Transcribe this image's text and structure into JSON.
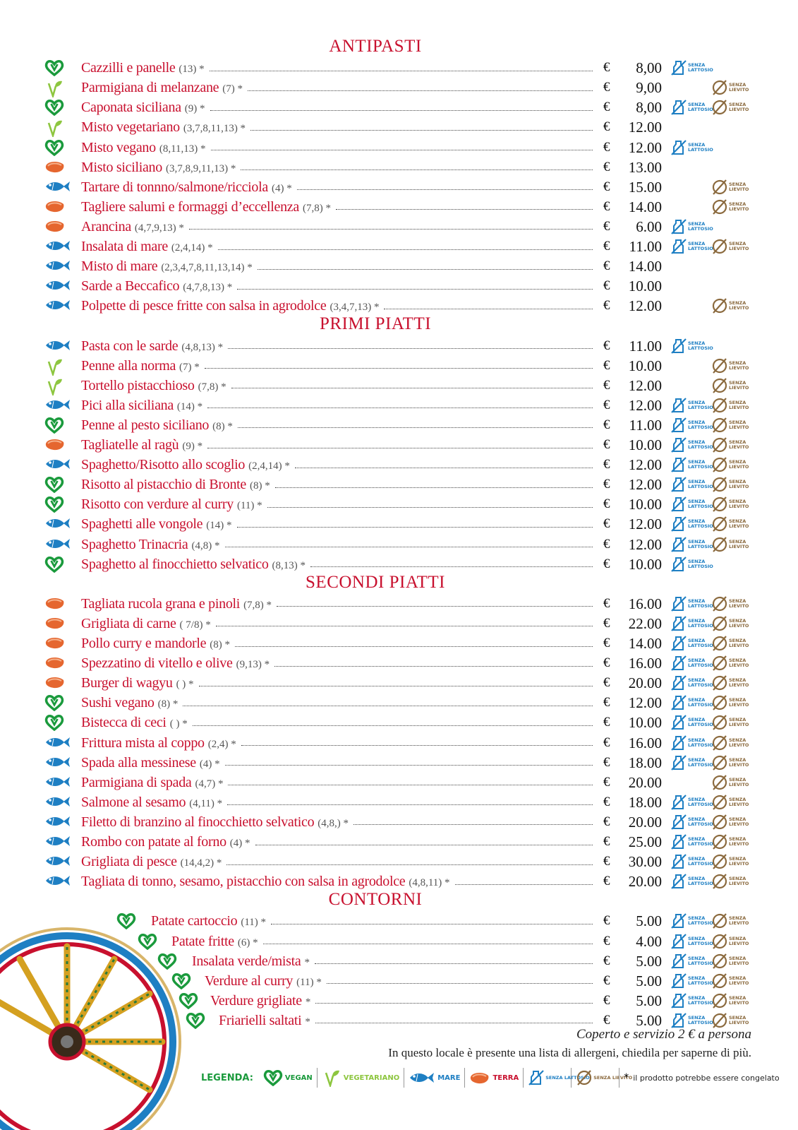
{
  "currency": "€",
  "sections": [
    {
      "title": "ANTIPASTI",
      "items": [
        {
          "icon": "vegan",
          "name": "Cazzilli e panelle",
          "note": "(13) *",
          "price": "8,00",
          "senza_lattosio": true,
          "senza_lievito": false
        },
        {
          "icon": "vegetarian",
          "name": "Parmigiana di melanzane",
          "note": "(7) *",
          "price": "9,00",
          "senza_lattosio": false,
          "senza_lievito": true
        },
        {
          "icon": "vegan",
          "name": "Caponata siciliana",
          "note": "(9) *",
          "price": "8,00",
          "senza_lattosio": true,
          "senza_lievito": true
        },
        {
          "icon": "vegetarian",
          "name": "Misto vegetariano",
          "note": "(3,7,8,11,13) *",
          "price": "12.00",
          "senza_lattosio": false,
          "senza_lievito": false
        },
        {
          "icon": "vegan",
          "name": "Misto vegano",
          "note": "(8,11,13) *",
          "price": "12.00",
          "senza_lattosio": true,
          "senza_lievito": false
        },
        {
          "icon": "terra",
          "name": "Misto siciliano",
          "note": "(3,7,8,9,11,13) *",
          "price": "13.00",
          "senza_lattosio": false,
          "senza_lievito": false
        },
        {
          "icon": "mare",
          "name": "Tartare di tonnno/salmone/ricciola",
          "note": "(4) *",
          "price": "15.00",
          "senza_lattosio": false,
          "senza_lievito": true
        },
        {
          "icon": "terra",
          "name": "Tagliere salumi e formaggi d’eccellenza",
          "note": "(7,8) *",
          "price": "14.00",
          "senza_lattosio": false,
          "senza_lievito": true
        },
        {
          "icon": "terra",
          "name": "Arancina",
          "note": "(4,7,9,13) *",
          "price": "6.00",
          "senza_lattosio": true,
          "senza_lievito": false
        },
        {
          "icon": "mare",
          "name": "Insalata di mare",
          "note": "(2,4,14) *",
          "price": "11.00",
          "senza_lattosio": true,
          "senza_lievito": true
        },
        {
          "icon": "mare",
          "name": "Misto di mare",
          "note": "(2,3,4,7,8,11,13,14) *",
          "price": "14.00",
          "senza_lattosio": false,
          "senza_lievito": false
        },
        {
          "icon": "mare",
          "name": "Sarde a Beccafico",
          "note": "(4,7,8,13) *",
          "price": "10.00",
          "senza_lattosio": false,
          "senza_lievito": false
        },
        {
          "icon": "mare",
          "name": "Polpette di pesce fritte con salsa in agrodolce",
          "note": "(3,4,7,13) *",
          "price": "12.00",
          "senza_lattosio": false,
          "senza_lievito": true
        }
      ]
    },
    {
      "title": "PRIMI PIATTI",
      "items": [
        {
          "icon": "mare",
          "name": "Pasta con le sarde",
          "note": "(4,8,13) *",
          "price": "11.00",
          "senza_lattosio": true,
          "senza_lievito": false
        },
        {
          "icon": "vegetarian",
          "name": "Penne alla norma",
          "note": "(7) *",
          "price": "10.00",
          "senza_lattosio": false,
          "senza_lievito": true
        },
        {
          "icon": "vegetarian",
          "name": "Tortello pistacchioso",
          "note": "(7,8) *",
          "price": "12.00",
          "senza_lattosio": false,
          "senza_lievito": true
        },
        {
          "icon": "mare",
          "name": "Pici alla siciliana",
          "note": "(14) *",
          "price": "12.00",
          "senza_lattosio": true,
          "senza_lievito": true
        },
        {
          "icon": "vegan",
          "name": "Penne al pesto siciliano",
          "note": "(8) *",
          "price": "11.00",
          "senza_lattosio": true,
          "senza_lievito": true
        },
        {
          "icon": "terra",
          "name": "Tagliatelle al ragù",
          "note": "(9) *",
          "price": "10.00",
          "senza_lattosio": true,
          "senza_lievito": true
        },
        {
          "icon": "mare",
          "name": "Spaghetto/Risotto allo scoglio",
          "note": "(2,4,14) *",
          "price": "12.00",
          "senza_lattosio": true,
          "senza_lievito": true
        },
        {
          "icon": "vegan",
          "name": "Risotto al pistacchio di Bronte",
          "note": "(8) *",
          "price": "12.00",
          "senza_lattosio": true,
          "senza_lievito": true
        },
        {
          "icon": "vegan",
          "name": "Risotto con verdure al curry",
          "note": "(11) *",
          "price": "10.00",
          "senza_lattosio": true,
          "senza_lievito": true
        },
        {
          "icon": "mare",
          "name": "Spaghetti alle vongole",
          "note": "(14) *",
          "price": "12.00",
          "senza_lattosio": true,
          "senza_lievito": true
        },
        {
          "icon": "mare",
          "name": "Spaghetto Trinacria",
          "note": "(4,8) *",
          "price": "12.00",
          "senza_lattosio": true,
          "senza_lievito": true
        },
        {
          "icon": "vegan",
          "name": "Spaghetto al finocchietto selvatico",
          "note": "(8,13) *",
          "price": "10.00",
          "senza_lattosio": true,
          "senza_lievito": false
        }
      ]
    },
    {
      "title": "SECONDI PIATTI",
      "items": [
        {
          "icon": "terra",
          "name": "Tagliata rucola grana e pinoli",
          "note": "(7,8) *",
          "price": "16.00",
          "senza_lattosio": true,
          "senza_lievito": true
        },
        {
          "icon": "terra",
          "name": "Grigliata di carne",
          "note": "( 7/8) *",
          "price": "22.00",
          "senza_lattosio": true,
          "senza_lievito": true
        },
        {
          "icon": "terra",
          "name": "Pollo curry e mandorle",
          "note": "(8) *",
          "price": "14.00",
          "senza_lattosio": true,
          "senza_lievito": true
        },
        {
          "icon": "terra",
          "name": "Spezzatino di vitello e olive",
          "note": "(9,13) *",
          "price": "16.00",
          "senza_lattosio": true,
          "senza_lievito": true
        },
        {
          "icon": "terra",
          "name": "Burger di wagyu",
          "note": "( ) *",
          "price": "20.00",
          "senza_lattosio": true,
          "senza_lievito": true
        },
        {
          "icon": "vegan",
          "name": "Sushi vegano",
          "note": "(8) *",
          "price": "12.00",
          "senza_lattosio": true,
          "senza_lievito": true
        },
        {
          "icon": "vegan",
          "name": "Bistecca di ceci",
          "note": "( ) *",
          "price": "10.00",
          "senza_lattosio": true,
          "senza_lievito": true
        },
        {
          "icon": "mare",
          "name": "Frittura mista al coppo",
          "note": "(2,4) *",
          "price": "16.00",
          "senza_lattosio": true,
          "senza_lievito": true
        },
        {
          "icon": "mare",
          "name": "Spada alla messinese",
          "note": "(4) *",
          "price": "18.00",
          "senza_lattosio": true,
          "senza_lievito": true
        },
        {
          "icon": "mare",
          "name": "Parmigiana di spada",
          "note": "(4,7) *",
          "price": "20.00",
          "senza_lattosio": false,
          "senza_lievito": true
        },
        {
          "icon": "mare",
          "name": "Salmone al sesamo",
          "note": "(4,11) *",
          "price": "18.00",
          "senza_lattosio": true,
          "senza_lievito": true
        },
        {
          "icon": "mare",
          "name": "Filetto di branzino al finocchietto selvatico",
          "note": "(4,8,) *",
          "price": "20.00",
          "senza_lattosio": true,
          "senza_lievito": true
        },
        {
          "icon": "mare",
          "name": "Rombo con patate al forno",
          "note": "(4) *",
          "price": "25.00",
          "senza_lattosio": true,
          "senza_lievito": true
        },
        {
          "icon": "mare",
          "name": "Grigliata di pesce",
          "note": "(14,4,2) *",
          "price": "30.00",
          "senza_lattosio": true,
          "senza_lievito": true
        },
        {
          "icon": "mare",
          "name": "Tagliata di tonno, sesamo, pistacchio con salsa in agrodolce",
          "note": "(4,8,11) *",
          "price": "20.00",
          "senza_lattosio": true,
          "senza_lievito": true
        }
      ]
    },
    {
      "title": "CONTORNI",
      "items": [
        {
          "icon": "vegan",
          "name": "Patate cartoccio",
          "note": "(11) *",
          "price": "5.00",
          "senza_lattosio": true,
          "senza_lievito": true
        },
        {
          "icon": "vegan",
          "name": "Patate fritte",
          "note": "(6) *",
          "price": "4.00",
          "senza_lattosio": true,
          "senza_lievito": true
        },
        {
          "icon": "vegan",
          "name": "Insalata verde/mista",
          "note": "*",
          "price": "5.00",
          "senza_lattosio": true,
          "senza_lievito": true
        },
        {
          "icon": "vegan",
          "name": "Verdure al curry",
          "note": "(11) *",
          "price": "5.00",
          "senza_lattosio": true,
          "senza_lievito": true
        },
        {
          "icon": "vegan",
          "name": "Verdure grigliate",
          "note": "*",
          "price": "5.00",
          "senza_lattosio": true,
          "senza_lievito": true
        },
        {
          "icon": "vegan",
          "name": "Friarielli saltati",
          "note": "*",
          "price": "5.00",
          "senza_lattosio": true,
          "senza_lievito": true
        }
      ]
    }
  ],
  "footer": {
    "cover": "Coperto e servizio 2 € a persona",
    "allergens": "In questo locale è presente una lista di allergeni, chiedila per saperne di più."
  },
  "legend": {
    "title": "LEGENDA:",
    "items": [
      {
        "icon": "vegan",
        "label": "VEGAN"
      },
      {
        "icon": "vegetarian",
        "label": "VEGETARIANO"
      },
      {
        "icon": "mare",
        "label": "MARE"
      },
      {
        "icon": "terra",
        "label": "TERRA"
      },
      {
        "icon": "senza_lattosio",
        "label": "SENZA LATTOSIO"
      },
      {
        "icon": "senza_lievito",
        "label": "SENZA LIEVITO"
      }
    ],
    "note": {
      "symbol": "*",
      "text": "il prodotto potrebbe essere congelato"
    }
  }
}
